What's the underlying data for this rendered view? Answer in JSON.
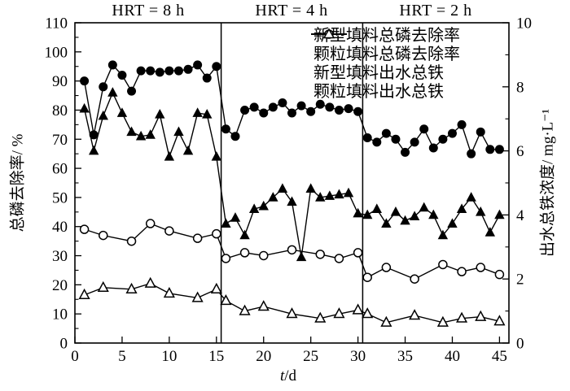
{
  "figure": {
    "xlabel_prefix": "t",
    "xlabel_suffix": "/d"
  },
  "colors": {
    "foreground": "#000000",
    "background": "#ffffff"
  },
  "chart_data": {
    "type": "line",
    "title": "",
    "xlabel": "t/d",
    "ylabel_left": "总磷去除率/ %",
    "ylabel_right": "出水总铁浓度/ mg·L⁻¹",
    "xlim": [
      0,
      46
    ],
    "ylim_left": [
      0,
      110
    ],
    "ylim_right": [
      0,
      10
    ],
    "xticks": [
      0,
      5,
      10,
      15,
      20,
      25,
      30,
      35,
      40,
      45
    ],
    "yticks_left": [
      0,
      10,
      20,
      30,
      40,
      50,
      60,
      70,
      80,
      90,
      100,
      110
    ],
    "yticks_right": [
      0,
      2,
      4,
      6,
      8,
      10
    ],
    "grid": false,
    "legend_position": "top-inside",
    "section_dividers_x": [
      15.5,
      30.5
    ],
    "sections": [
      {
        "label": "HRT = 8 h",
        "x_range": [
          0,
          15.5
        ]
      },
      {
        "label": "HRT = 4 h",
        "x_range": [
          15.5,
          30.5
        ]
      },
      {
        "label": "HRT = 2 h",
        "x_range": [
          30.5,
          46
        ]
      }
    ],
    "series": [
      {
        "id": "new-media-p-removal",
        "name": "新型填料总磷去除率",
        "marker": "filled-circle",
        "axis": "left",
        "unit": "%",
        "x": [
          1,
          2,
          3,
          4,
          5,
          6,
          7,
          8,
          9,
          10,
          11,
          12,
          13,
          14,
          15,
          16,
          17,
          18,
          19,
          20,
          21,
          22,
          23,
          24,
          25,
          26,
          27,
          28,
          29,
          30,
          31,
          32,
          33,
          34,
          35,
          36,
          37,
          38,
          39,
          40,
          41,
          42,
          43,
          44,
          45
        ],
        "y": [
          90,
          71.5,
          88,
          95.5,
          92,
          86.5,
          93.5,
          93.5,
          93,
          93.5,
          93.5,
          94,
          95.5,
          91,
          95,
          73.5,
          71,
          80,
          81,
          79,
          81,
          82.5,
          79,
          81.5,
          79.5,
          82,
          81,
          80,
          80.5,
          79.5,
          70.5,
          69,
          72,
          70,
          65.5,
          69,
          73.5,
          67,
          70,
          72,
          75,
          65,
          72.5,
          66.5,
          66.5
        ]
      },
      {
        "id": "granular-media-p-removal",
        "name": "颗粒填料总磷去除率",
        "marker": "filled-triangle",
        "axis": "left",
        "unit": "%",
        "x": [
          1,
          2,
          3,
          4,
          5,
          6,
          7,
          8,
          9,
          10,
          11,
          12,
          13,
          14,
          15,
          16,
          17,
          18,
          19,
          20,
          21,
          22,
          23,
          24,
          25,
          26,
          27,
          28,
          29,
          30,
          31,
          32,
          33,
          34,
          35,
          36,
          37,
          38,
          39,
          40,
          41,
          42,
          43,
          44,
          45
        ],
        "y": [
          80.5,
          66,
          78,
          86,
          79,
          72.5,
          71,
          71.5,
          78.5,
          64,
          72.5,
          66,
          79,
          78.5,
          64,
          41,
          43,
          37,
          46,
          47,
          50,
          53,
          48.5,
          29.5,
          53,
          50,
          50.5,
          51,
          51.5,
          44.5,
          44,
          46,
          41,
          45,
          42,
          43.5,
          46.5,
          44,
          37,
          41,
          46,
          50,
          45,
          38,
          44
        ]
      },
      {
        "id": "new-media-effluent-iron",
        "name": "新型填料出水总铁",
        "marker": "open-circle",
        "axis": "right",
        "unit": "mg/L",
        "x": [
          1,
          3,
          6,
          8,
          10,
          13,
          15,
          16,
          18,
          20,
          23,
          26,
          28,
          30,
          31,
          33,
          36,
          39,
          41,
          43,
          45
        ],
        "y": [
          3.55,
          3.36,
          3.18,
          3.73,
          3.5,
          3.27,
          3.41,
          2.64,
          2.82,
          2.73,
          2.91,
          2.77,
          2.64,
          2.82,
          2.05,
          2.36,
          2.0,
          2.45,
          2.23,
          2.36,
          2.14
        ]
      },
      {
        "id": "granular-media-effluent-iron",
        "name": "颗粒填料出水总铁",
        "marker": "open-triangle",
        "axis": "right",
        "unit": "mg/L",
        "x": [
          1,
          3,
          6,
          8,
          10,
          13,
          15,
          16,
          18,
          20,
          23,
          26,
          28,
          30,
          31,
          33,
          36,
          39,
          41,
          43,
          45
        ],
        "y": [
          1.5,
          1.73,
          1.68,
          1.86,
          1.55,
          1.41,
          1.68,
          1.32,
          1.0,
          1.14,
          0.91,
          0.77,
          0.91,
          1.03,
          0.91,
          0.64,
          0.86,
          0.64,
          0.77,
          0.82,
          0.68
        ]
      }
    ]
  }
}
